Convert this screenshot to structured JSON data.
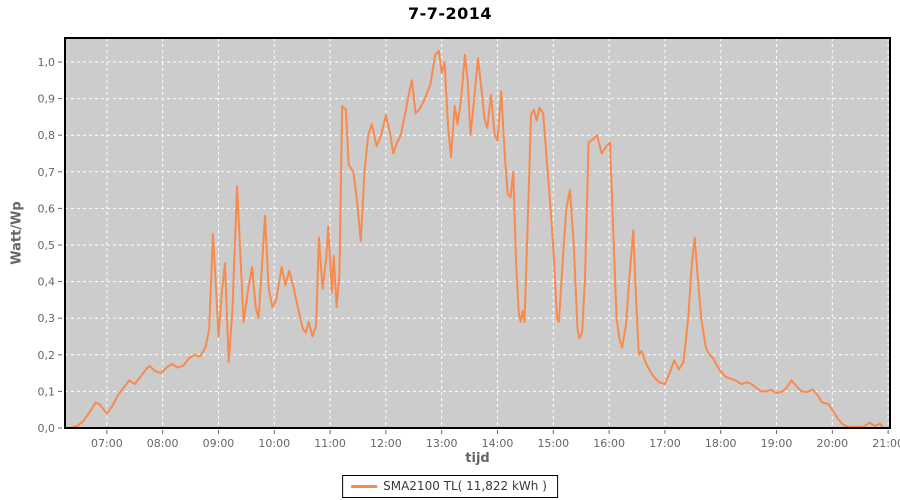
{
  "chart_data": {
    "type": "line",
    "title": "7-7-2014",
    "xlabel": "tijd",
    "ylabel": "Watt/Wp",
    "legend": {
      "position": "bottom-center",
      "label": "SMA2100 TL( 11,822 kWh )"
    },
    "colors": {
      "series": "#f98a4d",
      "plot_background": "#cccccc",
      "gridline": "#ffffff",
      "frame": "#000000",
      "tick_label": "#666666",
      "tick_mark": "#666666",
      "title": "#000000"
    },
    "grid": "dashed",
    "x_range_minutes": [
      375,
      1262
    ],
    "ylim": [
      0.0,
      1.07
    ],
    "x_ticks": [
      {
        "label": "07:00",
        "minutes": 420
      },
      {
        "label": "08:00",
        "minutes": 480
      },
      {
        "label": "09:00",
        "minutes": 540
      },
      {
        "label": "10:00",
        "minutes": 600
      },
      {
        "label": "11:00",
        "minutes": 660
      },
      {
        "label": "12:00",
        "minutes": 720
      },
      {
        "label": "13:00",
        "minutes": 780
      },
      {
        "label": "14:00",
        "minutes": 840
      },
      {
        "label": "15:00",
        "minutes": 900
      },
      {
        "label": "16:00",
        "minutes": 960
      },
      {
        "label": "17:00",
        "minutes": 1020
      },
      {
        "label": "18:00",
        "minutes": 1080
      },
      {
        "label": "19:00",
        "minutes": 1140
      },
      {
        "label": "20:00",
        "minutes": 1200
      },
      {
        "label": "21:00",
        "minutes": 1260
      }
    ],
    "y_ticks": [
      {
        "label": "0,0",
        "value": 0.0
      },
      {
        "label": "0,1",
        "value": 0.1
      },
      {
        "label": "0,2",
        "value": 0.2
      },
      {
        "label": "0,3",
        "value": 0.3
      },
      {
        "label": "0,4",
        "value": 0.4
      },
      {
        "label": "0,5",
        "value": 0.5
      },
      {
        "label": "0,6",
        "value": 0.6
      },
      {
        "label": "0,7",
        "value": 0.7
      },
      {
        "label": "0,8",
        "value": 0.8
      },
      {
        "label": "0,9",
        "value": 0.9
      },
      {
        "label": "1,0",
        "value": 1.0
      }
    ],
    "series": [
      {
        "name": "SMA2100 TL( 11,822 kWh )",
        "color": "#f98a4d",
        "points": [
          [
            "06:20",
            0.0
          ],
          [
            "06:28",
            0.005
          ],
          [
            "06:35",
            0.02
          ],
          [
            "06:42",
            0.045
          ],
          [
            "06:48",
            0.07
          ],
          [
            "06:52",
            0.065
          ],
          [
            "07:00",
            0.04
          ],
          [
            "07:06",
            0.06
          ],
          [
            "07:12",
            0.09
          ],
          [
            "07:18",
            0.11
          ],
          [
            "07:24",
            0.13
          ],
          [
            "07:30",
            0.12
          ],
          [
            "07:36",
            0.14
          ],
          [
            "07:42",
            0.16
          ],
          [
            "07:46",
            0.17
          ],
          [
            "07:52",
            0.155
          ],
          [
            "07:58",
            0.15
          ],
          [
            "08:04",
            0.165
          ],
          [
            "08:10",
            0.175
          ],
          [
            "08:16",
            0.165
          ],
          [
            "08:22",
            0.17
          ],
          [
            "08:28",
            0.19
          ],
          [
            "08:34",
            0.2
          ],
          [
            "08:40",
            0.195
          ],
          [
            "08:46",
            0.22
          ],
          [
            "08:50",
            0.27
          ],
          [
            "08:54",
            0.53
          ],
          [
            "08:57",
            0.4
          ],
          [
            "09:00",
            0.25
          ],
          [
            "09:04",
            0.38
          ],
          [
            "09:07",
            0.45
          ],
          [
            "09:11",
            0.18
          ],
          [
            "09:15",
            0.32
          ],
          [
            "09:20",
            0.66
          ],
          [
            "09:24",
            0.45
          ],
          [
            "09:27",
            0.29
          ],
          [
            "09:32",
            0.38
          ],
          [
            "09:36",
            0.44
          ],
          [
            "09:40",
            0.33
          ],
          [
            "09:43",
            0.3
          ],
          [
            "09:47",
            0.45
          ],
          [
            "09:50",
            0.58
          ],
          [
            "09:54",
            0.38
          ],
          [
            "09:58",
            0.33
          ],
          [
            "10:02",
            0.35
          ],
          [
            "10:08",
            0.44
          ],
          [
            "10:12",
            0.39
          ],
          [
            "10:16",
            0.43
          ],
          [
            "10:22",
            0.37
          ],
          [
            "10:27",
            0.31
          ],
          [
            "10:31",
            0.27
          ],
          [
            "10:34",
            0.26
          ],
          [
            "10:37",
            0.29
          ],
          [
            "10:41",
            0.25
          ],
          [
            "10:45",
            0.28
          ],
          [
            "10:48",
            0.52
          ],
          [
            "10:52",
            0.38
          ],
          [
            "10:56",
            0.47
          ],
          [
            "10:58",
            0.55
          ],
          [
            "11:02",
            0.37
          ],
          [
            "11:04",
            0.47
          ],
          [
            "11:07",
            0.33
          ],
          [
            "11:10",
            0.42
          ],
          [
            "11:13",
            0.88
          ],
          [
            "11:17",
            0.87
          ],
          [
            "11:20",
            0.72
          ],
          [
            "11:25",
            0.7
          ],
          [
            "11:29",
            0.62
          ],
          [
            "11:33",
            0.51
          ],
          [
            "11:37",
            0.7
          ],
          [
            "11:41",
            0.8
          ],
          [
            "11:45",
            0.83
          ],
          [
            "11:50",
            0.77
          ],
          [
            "11:55",
            0.8
          ],
          [
            "12:00",
            0.855
          ],
          [
            "12:05",
            0.8
          ],
          [
            "12:08",
            0.75
          ],
          [
            "12:12",
            0.78
          ],
          [
            "12:16",
            0.8
          ],
          [
            "12:20",
            0.85
          ],
          [
            "12:26",
            0.93
          ],
          [
            "12:28",
            0.95
          ],
          [
            "12:32",
            0.86
          ],
          [
            "12:36",
            0.87
          ],
          [
            "12:42",
            0.9
          ],
          [
            "12:48",
            0.94
          ],
          [
            "12:53",
            1.02
          ],
          [
            "12:57",
            1.03
          ],
          [
            "13:00",
            0.97
          ],
          [
            "13:03",
            1.0
          ],
          [
            "13:07",
            0.82
          ],
          [
            "13:10",
            0.74
          ],
          [
            "13:14",
            0.88
          ],
          [
            "13:17",
            0.83
          ],
          [
            "13:21",
            0.9
          ],
          [
            "13:25",
            1.02
          ],
          [
            "13:28",
            0.95
          ],
          [
            "13:31",
            0.8
          ],
          [
            "13:35",
            0.9
          ],
          [
            "13:39",
            1.01
          ],
          [
            "13:43",
            0.92
          ],
          [
            "13:46",
            0.845
          ],
          [
            "13:49",
            0.82
          ],
          [
            "13:53",
            0.91
          ],
          [
            "13:57",
            0.8
          ],
          [
            "14:00",
            0.785
          ],
          [
            "14:04",
            0.92
          ],
          [
            "14:08",
            0.74
          ],
          [
            "14:11",
            0.64
          ],
          [
            "14:14",
            0.63
          ],
          [
            "14:17",
            0.7
          ],
          [
            "14:20",
            0.45
          ],
          [
            "14:23",
            0.31
          ],
          [
            "14:25",
            0.29
          ],
          [
            "14:27",
            0.32
          ],
          [
            "14:29",
            0.29
          ],
          [
            "14:33",
            0.6
          ],
          [
            "14:36",
            0.855
          ],
          [
            "14:39",
            0.87
          ],
          [
            "14:42",
            0.84
          ],
          [
            "14:45",
            0.875
          ],
          [
            "14:49",
            0.86
          ],
          [
            "14:54",
            0.7
          ],
          [
            "14:58",
            0.57
          ],
          [
            "15:01",
            0.45
          ],
          [
            "15:04",
            0.3
          ],
          [
            "15:06",
            0.29
          ],
          [
            "15:10",
            0.45
          ],
          [
            "15:14",
            0.6
          ],
          [
            "15:18",
            0.65
          ],
          [
            "15:22",
            0.5
          ],
          [
            "15:26",
            0.27
          ],
          [
            "15:28",
            0.245
          ],
          [
            "15:31",
            0.26
          ],
          [
            "15:34",
            0.4
          ],
          [
            "15:38",
            0.78
          ],
          [
            "15:43",
            0.79
          ],
          [
            "15:47",
            0.8
          ],
          [
            "15:52",
            0.75
          ],
          [
            "15:57",
            0.77
          ],
          [
            "16:01",
            0.78
          ],
          [
            "16:05",
            0.5
          ],
          [
            "16:08",
            0.3
          ],
          [
            "16:11",
            0.245
          ],
          [
            "16:14",
            0.22
          ],
          [
            "16:18",
            0.28
          ],
          [
            "16:22",
            0.42
          ],
          [
            "16:26",
            0.54
          ],
          [
            "16:29",
            0.35
          ],
          [
            "16:32",
            0.2
          ],
          [
            "16:35",
            0.21
          ],
          [
            "16:39",
            0.18
          ],
          [
            "16:43",
            0.16
          ],
          [
            "16:48",
            0.14
          ],
          [
            "16:54",
            0.125
          ],
          [
            "17:00",
            0.12
          ],
          [
            "17:05",
            0.15
          ],
          [
            "17:10",
            0.185
          ],
          [
            "17:15",
            0.16
          ],
          [
            "17:20",
            0.18
          ],
          [
            "17:25",
            0.3
          ],
          [
            "17:29",
            0.45
          ],
          [
            "17:32",
            0.52
          ],
          [
            "17:35",
            0.42
          ],
          [
            "17:39",
            0.3
          ],
          [
            "17:44",
            0.22
          ],
          [
            "17:48",
            0.2
          ],
          [
            "17:52",
            0.19
          ],
          [
            "17:56",
            0.17
          ],
          [
            "18:00",
            0.155
          ],
          [
            "18:05",
            0.14
          ],
          [
            "18:10",
            0.135
          ],
          [
            "18:16",
            0.13
          ],
          [
            "18:22",
            0.12
          ],
          [
            "18:28",
            0.125
          ],
          [
            "18:33",
            0.12
          ],
          [
            "18:38",
            0.11
          ],
          [
            "18:44",
            0.1
          ],
          [
            "18:50",
            0.1
          ],
          [
            "18:54",
            0.105
          ],
          [
            "19:00",
            0.095
          ],
          [
            "19:06",
            0.1
          ],
          [
            "19:11",
            0.11
          ],
          [
            "19:16",
            0.13
          ],
          [
            "19:21",
            0.115
          ],
          [
            "19:27",
            0.1
          ],
          [
            "19:33",
            0.098
          ],
          [
            "19:39",
            0.105
          ],
          [
            "19:44",
            0.09
          ],
          [
            "19:49",
            0.07
          ],
          [
            "19:56",
            0.065
          ],
          [
            "20:01",
            0.045
          ],
          [
            "20:06",
            0.025
          ],
          [
            "20:12",
            0.008
          ],
          [
            "20:18",
            0.003
          ],
          [
            "20:26",
            0.003
          ],
          [
            "20:34",
            0.004
          ],
          [
            "20:40",
            0.015
          ],
          [
            "20:46",
            0.005
          ],
          [
            "20:51",
            0.012
          ],
          [
            "20:55",
            0.0
          ]
        ]
      }
    ]
  }
}
